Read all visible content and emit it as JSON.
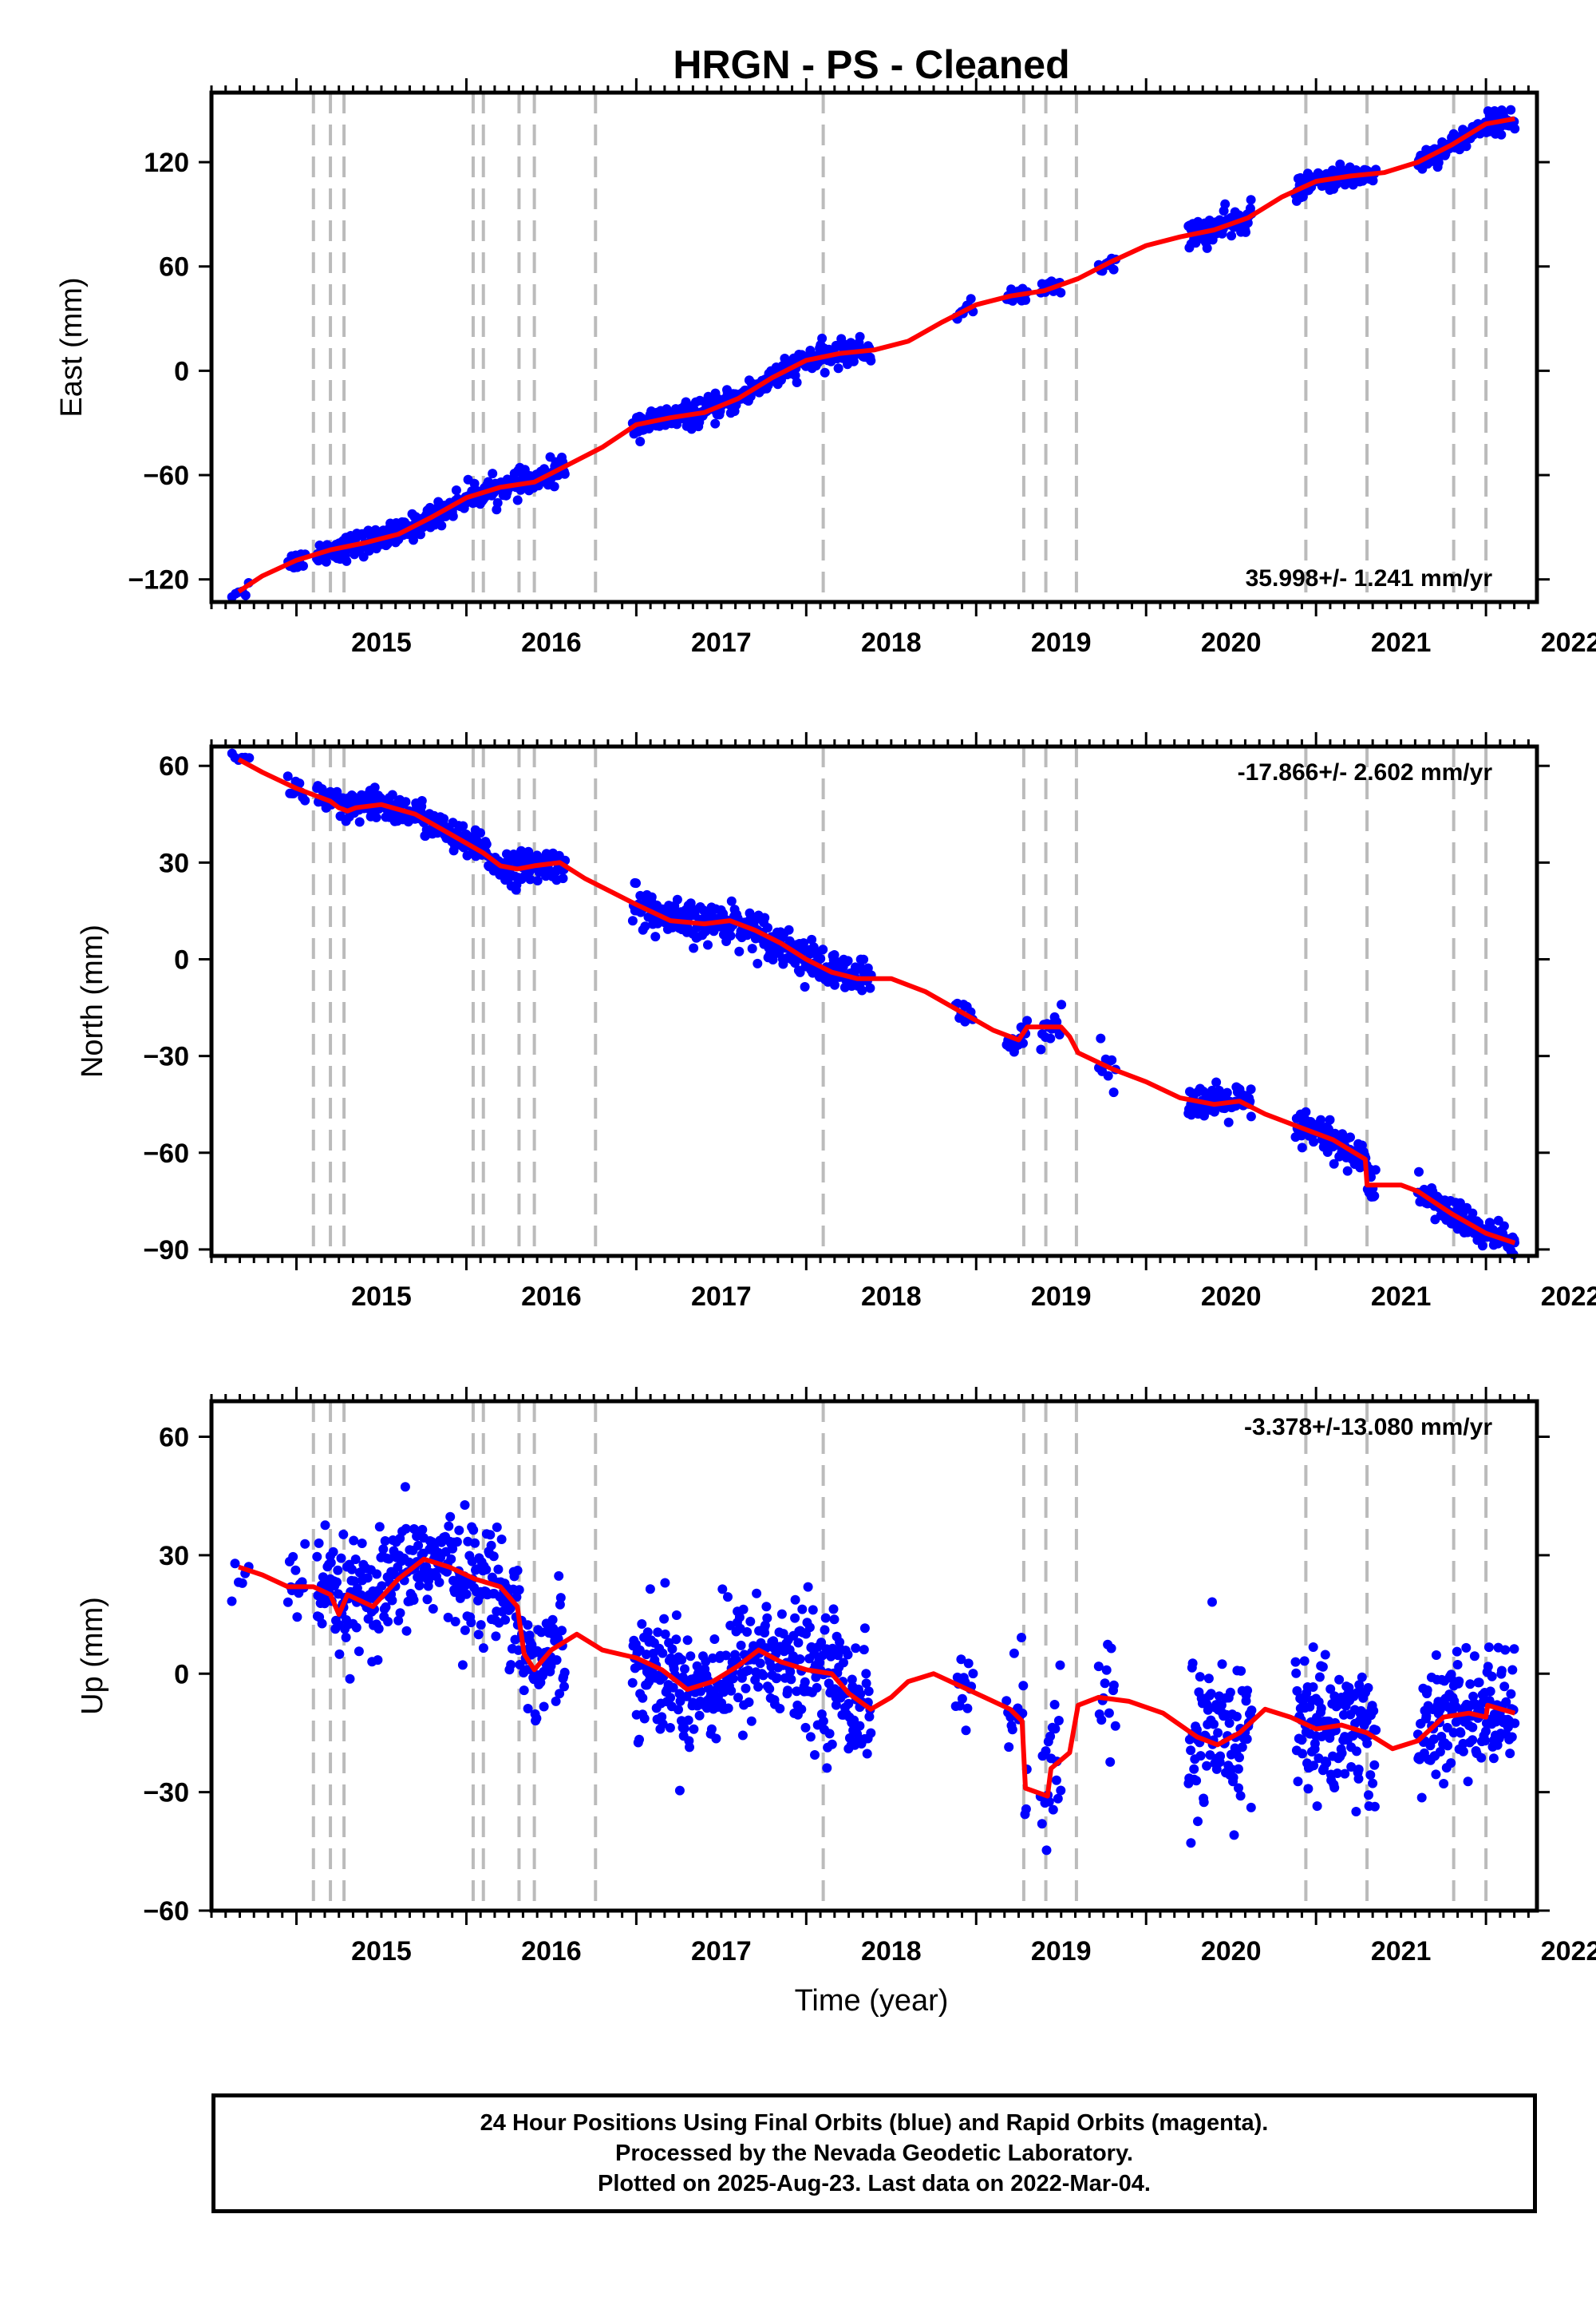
{
  "chart_data": {
    "type": "scatter",
    "title": "HRGN  - PS - Cleaned",
    "xlabel": "Time (year)",
    "x_ticks": [
      2015,
      2016,
      2017,
      2018,
      2019,
      2020,
      2021,
      2022
    ],
    "x_range": [
      2014.5,
      2022.3
    ],
    "colors": {
      "points": "#0000ff",
      "model": "#ff0000",
      "breaks": "#bbbbbb"
    },
    "breaks": [
      2015.1,
      2015.2,
      2015.28,
      2016.04,
      2016.1,
      2016.31,
      2016.4,
      2016.76,
      2018.1,
      2019.28,
      2019.41,
      2019.59,
      2020.94,
      2021.3,
      2021.81,
      2022.0
    ],
    "panels": [
      {
        "name": "East",
        "ylabel": "East (mm)",
        "ylim": [
          -133,
          160
        ],
        "yticks": [
          -120,
          -60,
          0,
          60,
          120
        ],
        "rate": "35.998+/- 1.241 mm/yr",
        "rate_position": "bottom-right",
        "model": [
          [
            2014.66,
            -127
          ],
          [
            2014.8,
            -118
          ],
          [
            2015.0,
            -109
          ],
          [
            2015.2,
            -103
          ],
          [
            2015.4,
            -99
          ],
          [
            2015.6,
            -94
          ],
          [
            2015.8,
            -84
          ],
          [
            2016.0,
            -73
          ],
          [
            2016.2,
            -67
          ],
          [
            2016.4,
            -64
          ],
          [
            2016.6,
            -54
          ],
          [
            2016.8,
            -44
          ],
          [
            2017.0,
            -31
          ],
          [
            2017.2,
            -27
          ],
          [
            2017.4,
            -24
          ],
          [
            2017.6,
            -16
          ],
          [
            2017.8,
            -4
          ],
          [
            2018.0,
            6
          ],
          [
            2018.2,
            10
          ],
          [
            2018.4,
            12
          ],
          [
            2018.6,
            17
          ],
          [
            2018.8,
            28
          ],
          [
            2019.0,
            38
          ],
          [
            2019.2,
            43
          ],
          [
            2019.4,
            46
          ],
          [
            2019.6,
            53
          ],
          [
            2019.8,
            63
          ],
          [
            2020.0,
            72
          ],
          [
            2020.2,
            77
          ],
          [
            2020.4,
            81
          ],
          [
            2020.6,
            88
          ],
          [
            2020.8,
            100
          ],
          [
            2021.0,
            109
          ],
          [
            2021.2,
            112
          ],
          [
            2021.4,
            114
          ],
          [
            2021.6,
            120
          ],
          [
            2021.8,
            130
          ],
          [
            2022.0,
            142
          ],
          [
            2022.17,
            145
          ]
        ],
        "segments": [
          {
            "from": 2014.62,
            "to": 2014.72,
            "n": 6,
            "spread": 3
          },
          {
            "from": 2014.95,
            "to": 2015.05,
            "n": 10,
            "spread": 3
          },
          {
            "from": 2015.12,
            "to": 2016.58,
            "n": 300,
            "spread": 3.5
          },
          {
            "from": 2016.98,
            "to": 2018.38,
            "n": 300,
            "spread": 3.5
          },
          {
            "from": 2018.88,
            "to": 2018.98,
            "n": 10,
            "spread": 2
          },
          {
            "from": 2019.18,
            "to": 2019.3,
            "n": 15,
            "spread": 2.5
          },
          {
            "from": 2019.38,
            "to": 2019.5,
            "n": 14,
            "spread": 2.5
          },
          {
            "from": 2019.72,
            "to": 2019.82,
            "n": 10,
            "spread": 2.5
          },
          {
            "from": 2020.25,
            "to": 2020.62,
            "n": 90,
            "spread": 4
          },
          {
            "from": 2020.88,
            "to": 2021.35,
            "n": 100,
            "spread": 3
          },
          {
            "from": 2021.6,
            "to": 2022.17,
            "n": 120,
            "spread": 3
          }
        ]
      },
      {
        "name": "North",
        "ylabel": "North (mm)",
        "ylim": [
          -92,
          66
        ],
        "yticks": [
          -90,
          -60,
          -30,
          0,
          30,
          60
        ],
        "rate": "-17.866+/- 2.602 mm/yr",
        "rate_position": "top-right",
        "model": [
          [
            2014.66,
            62
          ],
          [
            2014.8,
            58
          ],
          [
            2015.0,
            53
          ],
          [
            2015.2,
            49
          ],
          [
            2015.25,
            47
          ],
          [
            2015.3,
            46
          ],
          [
            2015.35,
            47
          ],
          [
            2015.5,
            48
          ],
          [
            2015.7,
            45
          ],
          [
            2015.9,
            39
          ],
          [
            2016.0,
            36
          ],
          [
            2016.1,
            33
          ],
          [
            2016.2,
            29
          ],
          [
            2016.3,
            28
          ],
          [
            2016.4,
            29
          ],
          [
            2016.55,
            30
          ],
          [
            2016.7,
            25
          ],
          [
            2016.85,
            21
          ],
          [
            2017.0,
            17
          ],
          [
            2017.2,
            12
          ],
          [
            2017.4,
            11
          ],
          [
            2017.55,
            12
          ],
          [
            2017.7,
            9
          ],
          [
            2017.85,
            5
          ],
          [
            2018.0,
            0
          ],
          [
            2018.15,
            -4
          ],
          [
            2018.3,
            -6
          ],
          [
            2018.5,
            -6
          ],
          [
            2018.7,
            -10
          ],
          [
            2018.9,
            -16
          ],
          [
            2019.1,
            -22
          ],
          [
            2019.25,
            -25
          ],
          [
            2019.3,
            -21
          ],
          [
            2019.5,
            -21
          ],
          [
            2019.55,
            -24
          ],
          [
            2019.6,
            -29
          ],
          [
            2019.8,
            -34
          ],
          [
            2020.0,
            -38
          ],
          [
            2020.2,
            -43
          ],
          [
            2020.4,
            -45
          ],
          [
            2020.55,
            -44
          ],
          [
            2020.7,
            -48
          ],
          [
            2020.9,
            -52
          ],
          [
            2021.1,
            -56
          ],
          [
            2021.29,
            -62
          ],
          [
            2021.3,
            -70
          ],
          [
            2021.5,
            -70
          ],
          [
            2021.6,
            -72
          ],
          [
            2021.8,
            -79
          ],
          [
            2022.0,
            -85
          ],
          [
            2022.17,
            -88
          ]
        ],
        "segments": [
          {
            "from": 2014.62,
            "to": 2014.72,
            "n": 6,
            "spread": 2
          },
          {
            "from": 2014.95,
            "to": 2015.05,
            "n": 10,
            "spread": 2
          },
          {
            "from": 2015.12,
            "to": 2016.58,
            "n": 300,
            "spread": 2.5
          },
          {
            "from": 2016.98,
            "to": 2018.38,
            "n": 300,
            "spread": 3
          },
          {
            "from": 2018.88,
            "to": 2018.98,
            "n": 10,
            "spread": 2
          },
          {
            "from": 2019.18,
            "to": 2019.3,
            "n": 15,
            "spread": 2
          },
          {
            "from": 2019.38,
            "to": 2019.5,
            "n": 14,
            "spread": 3
          },
          {
            "from": 2019.72,
            "to": 2019.82,
            "n": 10,
            "spread": 3
          },
          {
            "from": 2020.25,
            "to": 2020.62,
            "n": 90,
            "spread": 2.5
          },
          {
            "from": 2020.88,
            "to": 2021.35,
            "n": 100,
            "spread": 3
          },
          {
            "from": 2021.6,
            "to": 2022.17,
            "n": 120,
            "spread": 2.5
          }
        ]
      },
      {
        "name": "Up",
        "ylabel": "Up (mm)",
        "ylim": [
          -60,
          69
        ],
        "yticks": [
          -60,
          -30,
          0,
          30,
          60
        ],
        "rate": "-3.378+/-13.080 mm/yr",
        "rate_position": "top-right",
        "model": [
          [
            2014.66,
            27
          ],
          [
            2014.8,
            25
          ],
          [
            2014.95,
            22
          ],
          [
            2015.1,
            22
          ],
          [
            2015.2,
            20
          ],
          [
            2015.25,
            15
          ],
          [
            2015.3,
            20
          ],
          [
            2015.45,
            17
          ],
          [
            2015.6,
            24
          ],
          [
            2015.75,
            29
          ],
          [
            2015.9,
            27
          ],
          [
            2016.05,
            24
          ],
          [
            2016.2,
            22
          ],
          [
            2016.3,
            17
          ],
          [
            2016.34,
            5
          ],
          [
            2016.4,
            1
          ],
          [
            2016.5,
            6
          ],
          [
            2016.65,
            10
          ],
          [
            2016.8,
            6
          ],
          [
            2017.0,
            4
          ],
          [
            2017.15,
            1
          ],
          [
            2017.3,
            -4
          ],
          [
            2017.45,
            -2
          ],
          [
            2017.6,
            2
          ],
          [
            2017.72,
            6
          ],
          [
            2017.85,
            3
          ],
          [
            2018.0,
            1
          ],
          [
            2018.15,
            0
          ],
          [
            2018.25,
            -5
          ],
          [
            2018.38,
            -9
          ],
          [
            2018.5,
            -6
          ],
          [
            2018.6,
            -2
          ],
          [
            2018.75,
            0
          ],
          [
            2018.9,
            -3
          ],
          [
            2019.05,
            -6
          ],
          [
            2019.2,
            -9
          ],
          [
            2019.27,
            -12
          ],
          [
            2019.29,
            -29
          ],
          [
            2019.42,
            -31
          ],
          [
            2019.44,
            -24
          ],
          [
            2019.55,
            -20
          ],
          [
            2019.6,
            -8
          ],
          [
            2019.72,
            -6
          ],
          [
            2019.9,
            -7
          ],
          [
            2020.1,
            -10
          ],
          [
            2020.3,
            -16
          ],
          [
            2020.42,
            -18
          ],
          [
            2020.55,
            -15
          ],
          [
            2020.7,
            -9
          ],
          [
            2020.85,
            -11
          ],
          [
            2021.0,
            -14
          ],
          [
            2021.15,
            -13
          ],
          [
            2021.3,
            -15
          ],
          [
            2021.45,
            -19
          ],
          [
            2021.6,
            -17
          ],
          [
            2021.75,
            -11
          ],
          [
            2021.9,
            -10
          ],
          [
            2022.0,
            -11
          ],
          [
            2022.01,
            -8
          ],
          [
            2022.17,
            -10
          ]
        ],
        "segments": [
          {
            "from": 2014.62,
            "to": 2014.72,
            "n": 6,
            "spread": 5
          },
          {
            "from": 2014.95,
            "to": 2015.05,
            "n": 14,
            "spread": 5
          },
          {
            "from": 2015.12,
            "to": 2016.58,
            "n": 360,
            "spread": 7
          },
          {
            "from": 2016.98,
            "to": 2018.38,
            "n": 380,
            "spread": 8
          },
          {
            "from": 2018.88,
            "to": 2018.98,
            "n": 14,
            "spread": 5
          },
          {
            "from": 2019.18,
            "to": 2019.3,
            "n": 18,
            "spread": 8
          },
          {
            "from": 2019.38,
            "to": 2019.5,
            "n": 22,
            "spread": 12
          },
          {
            "from": 2019.72,
            "to": 2019.82,
            "n": 14,
            "spread": 9
          },
          {
            "from": 2020.25,
            "to": 2020.62,
            "n": 100,
            "spread": 10
          },
          {
            "from": 2020.88,
            "to": 2021.35,
            "n": 140,
            "spread": 9
          },
          {
            "from": 2021.6,
            "to": 2022.17,
            "n": 160,
            "spread": 7
          }
        ]
      }
    ]
  },
  "footer": {
    "line1": "24 Hour Positions Using Final Orbits (blue) and Rapid Orbits (magenta).",
    "line2": "Processed by the Nevada Geodetic Laboratory.",
    "line3": "Plotted on 2025-Aug-23. Last data on 2022-Mar-04."
  }
}
